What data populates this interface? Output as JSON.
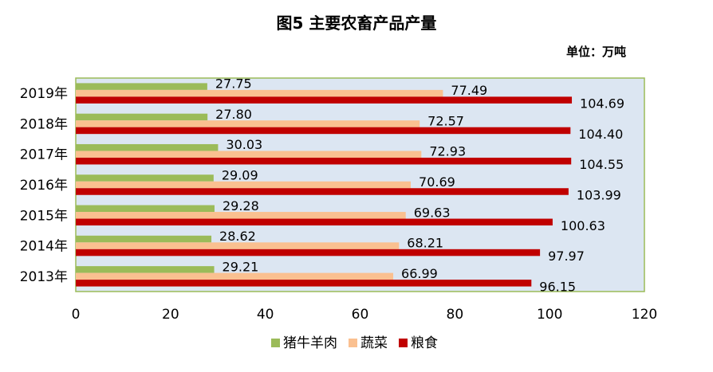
{
  "chart_data": {
    "type": "bar",
    "orientation": "horizontal",
    "title": "图5  主要农畜产品产量",
    "unit_label": "单位：万吨",
    "categories": [
      "2019年",
      "2018年",
      "2017年",
      "2016年",
      "2015年",
      "2014年",
      "2013年"
    ],
    "series": [
      {
        "name": "猪牛羊肉",
        "color": "#9BBB59",
        "values": [
          27.75,
          27.8,
          30.03,
          29.09,
          29.28,
          28.62,
          29.21
        ],
        "labels": [
          "27.75",
          "27.80",
          "30.03",
          "29.09",
          "29.28",
          "28.62",
          "29.21"
        ]
      },
      {
        "name": "蔬菜",
        "color": "#FAC090",
        "values": [
          77.49,
          72.57,
          72.93,
          70.69,
          69.63,
          68.21,
          66.99
        ],
        "labels": [
          "77.49",
          "72.57",
          "72.93",
          "70.69",
          "69.63",
          "68.21",
          "66.99"
        ]
      },
      {
        "name": "粮食",
        "color": "#C00000",
        "values": [
          104.69,
          104.4,
          104.55,
          103.99,
          100.63,
          97.97,
          96.15
        ],
        "labels": [
          "104.69",
          "104.40",
          "104.55",
          "103.99",
          "100.63",
          "97.97",
          "96.15"
        ]
      }
    ],
    "xlim": [
      0,
      120
    ],
    "xticks": [
      "0",
      "20",
      "40",
      "60",
      "80",
      "100",
      "120"
    ],
    "grid": false,
    "legend_position": "bottom",
    "plot_background": "#DCE6F2",
    "plot_border": "#9BBB59"
  }
}
